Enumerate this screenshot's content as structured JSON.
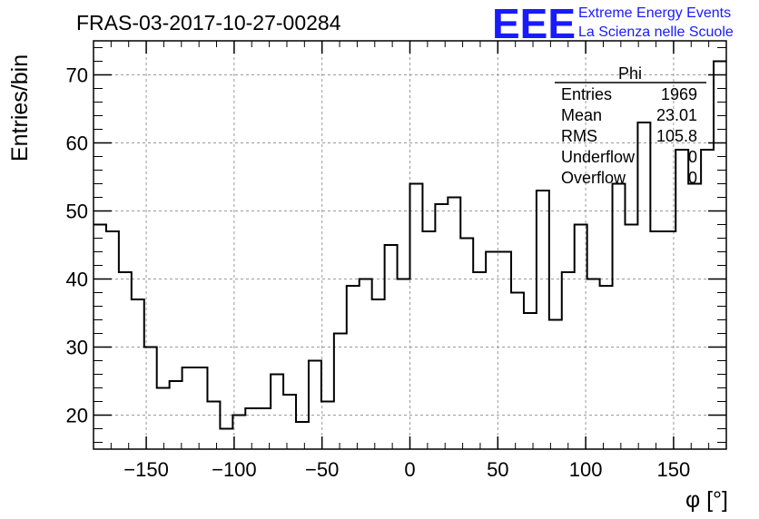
{
  "title": "FRAS-03-2017-10-27-00284",
  "logo": {
    "mark": "EEE",
    "line1": "Extreme Energy Events",
    "line2": "La Scienza nelle Scuole",
    "color": "#1a1aff"
  },
  "stats_box": {
    "name": "Phi",
    "rows": [
      {
        "label": "Entries",
        "value": "1969"
      },
      {
        "label": "Mean",
        "value": "23.01"
      },
      {
        "label": "RMS",
        "value": "105.8"
      },
      {
        "label": "Underflow",
        "value": "0"
      },
      {
        "label": "Overflow",
        "value": "0"
      }
    ]
  },
  "chart_data": {
    "type": "bar",
    "style": "step-histogram",
    "xlabel": "φ [°]",
    "ylabel": "Entries/bin",
    "xlim": [
      -180,
      180
    ],
    "ylim": [
      15,
      75
    ],
    "grid": true,
    "bin_width": 7.2,
    "xticks": [
      -150,
      -100,
      -50,
      0,
      50,
      100,
      150
    ],
    "xtick_labels": [
      "−150",
      "−100",
      "−50",
      "0",
      "50",
      "100",
      "150"
    ],
    "yticks": [
      20,
      30,
      40,
      50,
      60,
      70
    ],
    "ytick_labels": [
      "20",
      "30",
      "40",
      "50",
      "60",
      "70"
    ],
    "values": [
      48,
      47,
      41,
      37,
      30,
      24,
      25,
      27,
      27,
      22,
      18,
      20,
      21,
      21,
      26,
      23,
      19,
      28,
      22,
      32,
      39,
      40,
      37,
      45,
      40,
      54,
      47,
      51,
      52,
      46,
      41,
      44,
      44,
      38,
      35,
      53,
      34,
      41,
      48,
      40,
      39,
      54,
      48,
      63,
      47,
      47,
      59,
      54,
      59,
      72
    ]
  }
}
